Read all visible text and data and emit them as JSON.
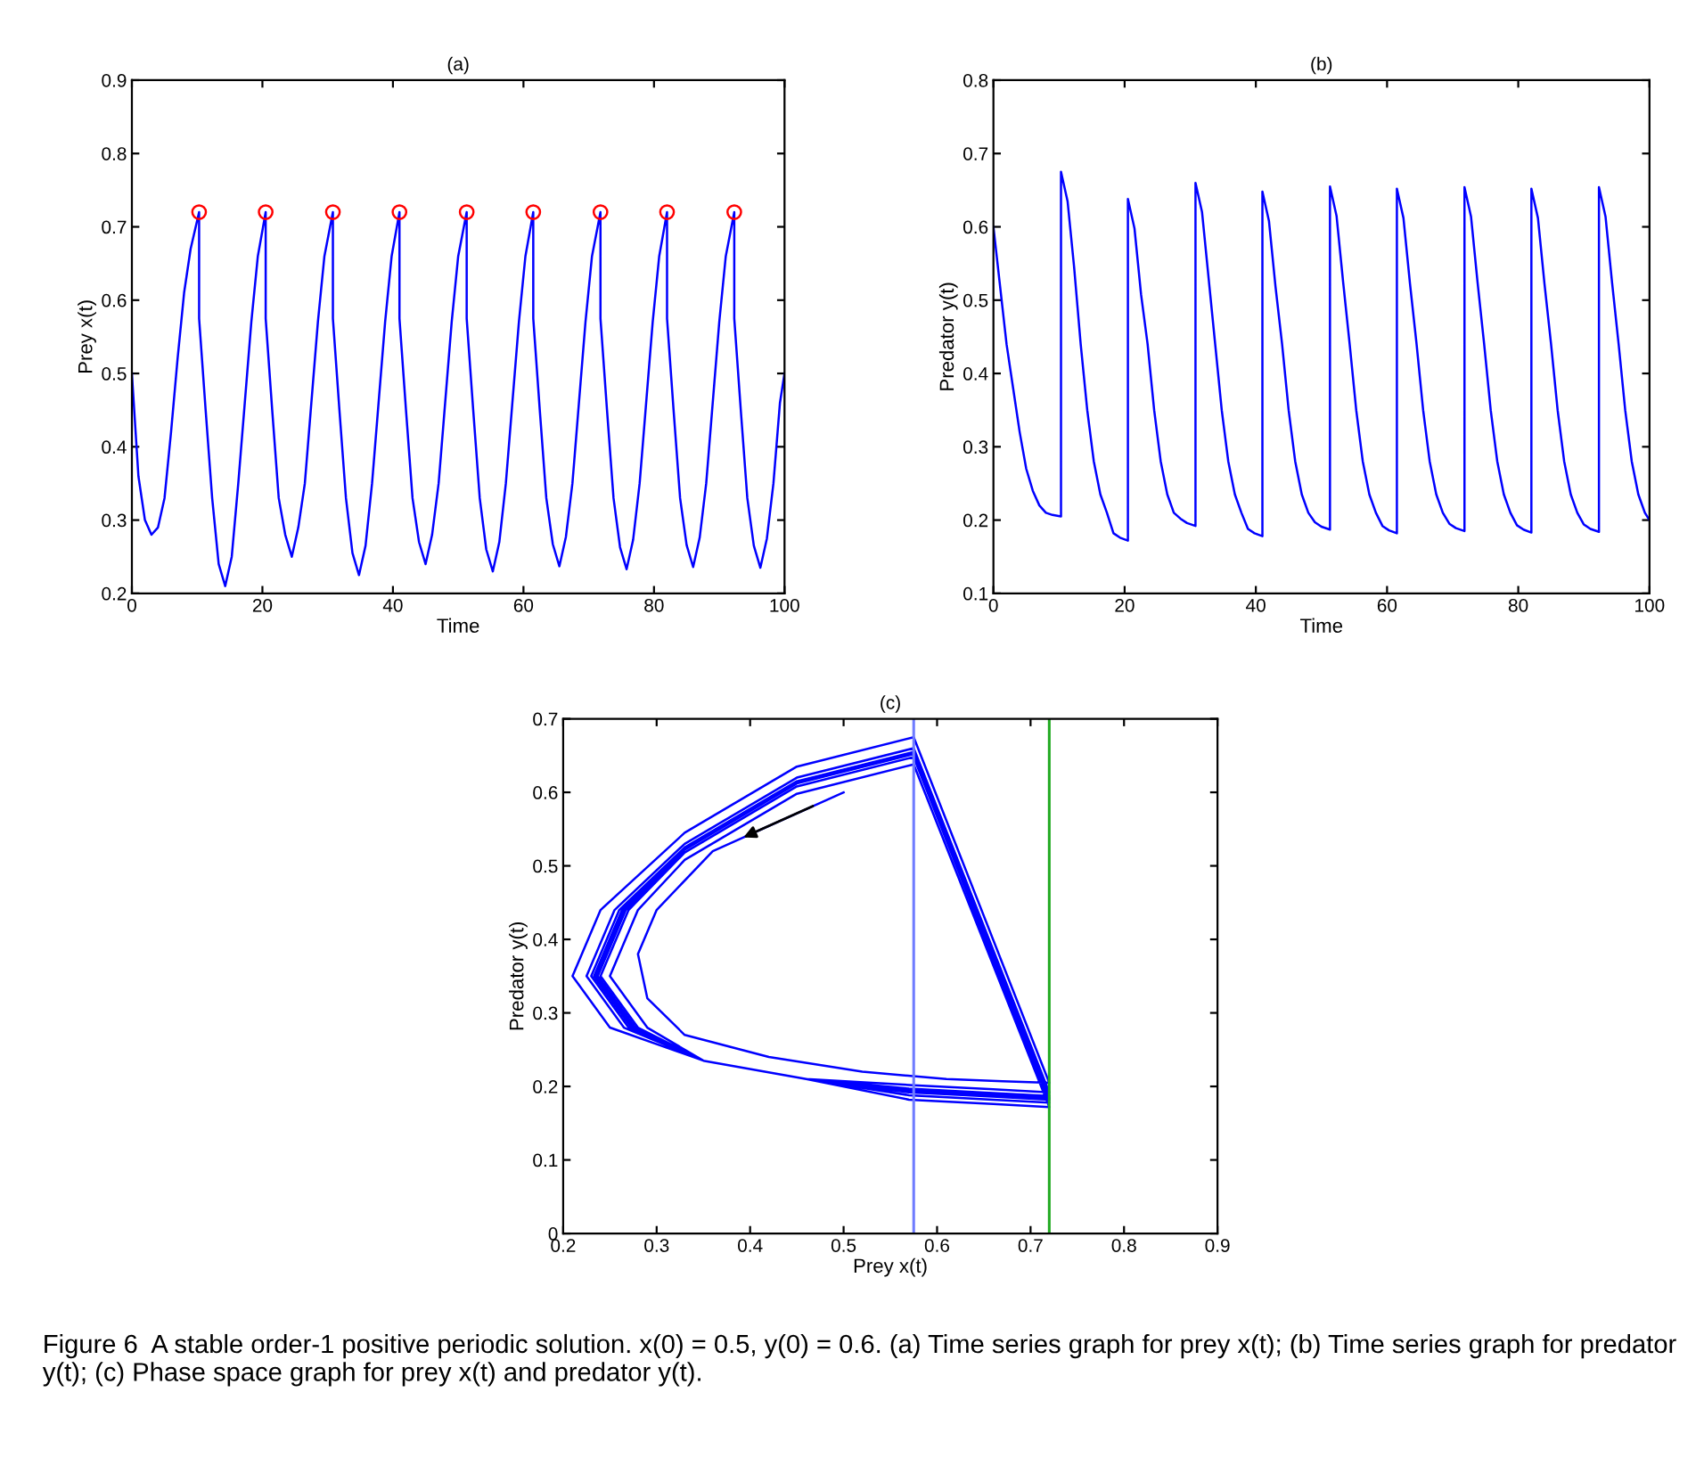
{
  "chart_data": [
    {
      "type": "line",
      "title": "(a)",
      "xlabel": "Time",
      "ylabel": "Prey x(t)",
      "x": [
        0,
        1,
        2,
        3,
        4,
        5,
        6,
        7,
        8,
        9,
        10.3,
        10.3,
        11.3,
        12.3,
        13.3,
        14.3,
        15.3,
        16.3,
        17.3,
        18.3,
        19.3,
        20.5,
        20.5,
        21.5,
        22.5,
        23.5,
        24.5,
        25.5,
        26.5,
        27.5,
        28.5,
        29.5,
        30.8,
        30.8,
        31.8,
        32.8,
        33.8,
        34.8,
        35.8,
        36.8,
        37.8,
        38.8,
        39.8,
        41.0,
        41.0,
        42.0,
        43.0,
        44.0,
        45.0,
        46.0,
        47.0,
        48.0,
        49.0,
        50.0,
        51.3,
        51.3,
        52.3,
        53.3,
        54.3,
        55.3,
        56.3,
        57.3,
        58.3,
        59.3,
        60.3,
        61.5,
        61.5,
        62.5,
        63.5,
        64.5,
        65.5,
        66.5,
        67.5,
        68.5,
        69.5,
        70.5,
        71.8,
        71.8,
        72.8,
        73.8,
        74.8,
        75.8,
        76.8,
        77.8,
        78.8,
        79.8,
        80.8,
        82.0,
        82.0,
        83.0,
        84.0,
        85.0,
        86.0,
        87.0,
        88.0,
        89.0,
        90.0,
        91.0,
        92.3,
        92.3,
        93.3,
        94.3,
        95.3,
        96.3,
        97.3,
        98.3,
        99.3,
        100
      ],
      "series": [
        {
          "type": "line",
          "color": "#0000ff",
          "marker": "none",
          "values": [
            0.5,
            0.36,
            0.3,
            0.28,
            0.29,
            0.33,
            0.42,
            0.52,
            0.61,
            0.67,
            0.72,
            0.575,
            0.45,
            0.33,
            0.24,
            0.21,
            0.25,
            0.35,
            0.46,
            0.57,
            0.66,
            0.72,
            0.575,
            0.45,
            0.33,
            0.28,
            0.25,
            0.29,
            0.35,
            0.46,
            0.57,
            0.66,
            0.72,
            0.575,
            0.45,
            0.33,
            0.255,
            0.225,
            0.265,
            0.35,
            0.46,
            0.57,
            0.66,
            0.72,
            0.575,
            0.45,
            0.33,
            0.27,
            0.24,
            0.28,
            0.35,
            0.46,
            0.57,
            0.66,
            0.72,
            0.575,
            0.45,
            0.33,
            0.26,
            0.23,
            0.27,
            0.35,
            0.46,
            0.57,
            0.66,
            0.72,
            0.575,
            0.45,
            0.33,
            0.267,
            0.237,
            0.277,
            0.35,
            0.46,
            0.57,
            0.66,
            0.72,
            0.575,
            0.45,
            0.33,
            0.263,
            0.233,
            0.273,
            0.35,
            0.46,
            0.57,
            0.66,
            0.72,
            0.575,
            0.45,
            0.33,
            0.266,
            0.236,
            0.276,
            0.35,
            0.46,
            0.57,
            0.66,
            0.72,
            0.575,
            0.45,
            0.33,
            0.265,
            0.235,
            0.275,
            0.35,
            0.46,
            0.5
          ]
        },
        {
          "type": "scatter",
          "color": "#ff0000",
          "marker": "circle",
          "x": [
            10.3,
            20.5,
            30.8,
            41.0,
            51.3,
            61.5,
            71.8,
            82.0,
            92.3
          ],
          "values": [
            0.72,
            0.72,
            0.72,
            0.72,
            0.72,
            0.72,
            0.72,
            0.72,
            0.72
          ]
        }
      ],
      "xlim": [
        0,
        100
      ],
      "xticks": [
        0,
        20,
        40,
        60,
        80,
        100
      ],
      "ylim": [
        0.2,
        0.9
      ],
      "yticks": [
        0.2,
        0.3,
        0.4,
        0.5,
        0.6,
        0.7,
        0.8,
        0.9
      ]
    },
    {
      "type": "line",
      "title": "(b)",
      "xlabel": "Time",
      "ylabel": "Predator y(t)",
      "x": [
        0,
        1,
        2,
        3,
        4,
        5,
        6,
        7,
        8,
        9,
        10.3,
        10.3,
        11.3,
        12.3,
        13.3,
        14.3,
        15.3,
        16.3,
        17.3,
        18.3,
        19.3,
        20.5,
        20.5,
        21.5,
        22.5,
        23.5,
        24.5,
        25.5,
        26.5,
        27.5,
        28.5,
        29.5,
        30.8,
        30.8,
        31.8,
        32.8,
        33.8,
        34.8,
        35.8,
        36.8,
        37.8,
        38.8,
        39.8,
        41.0,
        41.0,
        42.0,
        43.0,
        44.0,
        45.0,
        46.0,
        47.0,
        48.0,
        49.0,
        50.0,
        51.3,
        51.3,
        52.3,
        53.3,
        54.3,
        55.3,
        56.3,
        57.3,
        58.3,
        59.3,
        60.3,
        61.5,
        61.5,
        62.5,
        63.5,
        64.5,
        65.5,
        66.5,
        67.5,
        68.5,
        69.5,
        70.5,
        71.8,
        71.8,
        72.8,
        73.8,
        74.8,
        75.8,
        76.8,
        77.8,
        78.8,
        79.8,
        80.8,
        82.0,
        82.0,
        83.0,
        84.0,
        85.0,
        86.0,
        87.0,
        88.0,
        89.0,
        90.0,
        91.0,
        92.3,
        92.3,
        93.3,
        94.3,
        95.3,
        96.3,
        97.3,
        98.3,
        99.3,
        100
      ],
      "series": [
        {
          "type": "line",
          "color": "#0000ff",
          "marker": "none",
          "values": [
            0.6,
            0.52,
            0.44,
            0.38,
            0.32,
            0.27,
            0.24,
            0.22,
            0.21,
            0.207,
            0.205,
            0.675,
            0.635,
            0.545,
            0.44,
            0.35,
            0.28,
            0.235,
            0.21,
            0.182,
            0.176,
            0.172,
            0.638,
            0.598,
            0.508,
            0.44,
            0.35,
            0.28,
            0.235,
            0.21,
            0.202,
            0.196,
            0.192,
            0.66,
            0.62,
            0.53,
            0.44,
            0.35,
            0.28,
            0.235,
            0.21,
            0.188,
            0.182,
            0.178,
            0.648,
            0.608,
            0.518,
            0.44,
            0.35,
            0.28,
            0.235,
            0.21,
            0.197,
            0.191,
            0.187,
            0.655,
            0.615,
            0.525,
            0.44,
            0.35,
            0.28,
            0.235,
            0.21,
            0.192,
            0.186,
            0.182,
            0.652,
            0.612,
            0.522,
            0.44,
            0.35,
            0.28,
            0.235,
            0.21,
            0.195,
            0.189,
            0.185,
            0.654,
            0.614,
            0.524,
            0.44,
            0.35,
            0.28,
            0.235,
            0.21,
            0.193,
            0.187,
            0.183,
            0.652,
            0.612,
            0.522,
            0.44,
            0.35,
            0.28,
            0.235,
            0.21,
            0.194,
            0.188,
            0.184,
            0.654,
            0.614,
            0.524,
            0.44,
            0.35,
            0.28,
            0.235,
            0.21,
            0.2
          ]
        }
      ],
      "xlim": [
        0,
        100
      ],
      "xticks": [
        0,
        20,
        40,
        60,
        80,
        100
      ],
      "ylim": [
        0.1,
        0.8
      ],
      "yticks": [
        0.1,
        0.2,
        0.3,
        0.4,
        0.5,
        0.6,
        0.7,
        0.8
      ]
    },
    {
      "type": "line",
      "title": "(c)",
      "xlabel": "Prey x(t)",
      "ylabel": "Predator y(t)",
      "series": [
        {
          "type": "line",
          "color": "#0000ff",
          "marker": "none",
          "x": [
            0.5,
            0.36,
            0.3,
            0.28,
            0.29,
            0.33,
            0.42,
            0.52,
            0.61,
            0.67,
            0.72,
            0.575,
            0.45,
            0.33,
            0.24,
            0.21,
            0.25,
            0.35,
            0.46,
            0.57,
            0.66,
            0.72,
            0.575,
            0.45,
            0.33,
            0.28,
            0.25,
            0.29,
            0.35,
            0.46,
            0.57,
            0.66,
            0.72,
            0.575,
            0.45,
            0.33,
            0.255,
            0.225,
            0.265,
            0.35,
            0.46,
            0.57,
            0.66,
            0.72,
            0.575,
            0.45,
            0.33,
            0.27,
            0.24,
            0.28,
            0.35,
            0.46,
            0.57,
            0.66,
            0.72,
            0.575,
            0.45,
            0.33,
            0.26,
            0.23,
            0.27,
            0.35,
            0.46,
            0.57,
            0.66,
            0.72,
            0.575,
            0.45,
            0.33,
            0.267,
            0.237,
            0.277,
            0.35,
            0.46,
            0.57,
            0.66,
            0.72,
            0.575,
            0.45,
            0.33,
            0.263,
            0.233,
            0.273,
            0.35,
            0.46,
            0.57,
            0.66,
            0.72,
            0.575,
            0.45,
            0.33,
            0.266,
            0.236,
            0.276,
            0.35,
            0.46,
            0.57,
            0.66,
            0.72,
            0.575,
            0.45,
            0.33,
            0.265,
            0.235,
            0.275,
            0.35,
            0.46,
            0.5
          ],
          "values": [
            0.6,
            0.52,
            0.44,
            0.38,
            0.32,
            0.27,
            0.24,
            0.22,
            0.21,
            0.207,
            0.205,
            0.675,
            0.635,
            0.545,
            0.44,
            0.35,
            0.28,
            0.235,
            0.21,
            0.182,
            0.176,
            0.172,
            0.638,
            0.598,
            0.508,
            0.44,
            0.35,
            0.28,
            0.235,
            0.21,
            0.202,
            0.196,
            0.192,
            0.66,
            0.62,
            0.53,
            0.44,
            0.35,
            0.28,
            0.235,
            0.21,
            0.188,
            0.182,
            0.178,
            0.648,
            0.608,
            0.518,
            0.44,
            0.35,
            0.28,
            0.235,
            0.21,
            0.197,
            0.191,
            0.187,
            0.655,
            0.615,
            0.525,
            0.44,
            0.35,
            0.28,
            0.235,
            0.21,
            0.192,
            0.186,
            0.182,
            0.652,
            0.612,
            0.522,
            0.44,
            0.35,
            0.28,
            0.235,
            0.21,
            0.195,
            0.189,
            0.185,
            0.654,
            0.614,
            0.524,
            0.44,
            0.35,
            0.28,
            0.235,
            0.21,
            0.193,
            0.187,
            0.183,
            0.652,
            0.612,
            0.522,
            0.44,
            0.35,
            0.28,
            0.235,
            0.21,
            0.194,
            0.188,
            0.184,
            0.654,
            0.614,
            0.524,
            0.44,
            0.35,
            0.28,
            0.235,
            0.21,
            0.2
          ]
        }
      ],
      "ref_lines": [
        {
          "axis": "x",
          "value": 0.575,
          "color": "#6f7cff"
        },
        {
          "axis": "x",
          "value": 0.72,
          "color": "#22aa22"
        }
      ],
      "xlim": [
        0.2,
        0.9
      ],
      "xticks": [
        0.2,
        0.3,
        0.4,
        0.5,
        0.6,
        0.7,
        0.8,
        0.9
      ],
      "ylim": [
        0,
        0.7
      ],
      "yticks": [
        0,
        0.1,
        0.2,
        0.3,
        0.4,
        0.5,
        0.6,
        0.7
      ],
      "annotations": [
        "Figure 6  A stable order-1 positive periodic solution. x(0) = 0.5, y(0) = 0.6. (a) Time series graph for prey x(t); (b) Time series graph for predator y(t); (c) Phase space graph for prey x(t) and predator y(t)."
      ]
    }
  ]
}
